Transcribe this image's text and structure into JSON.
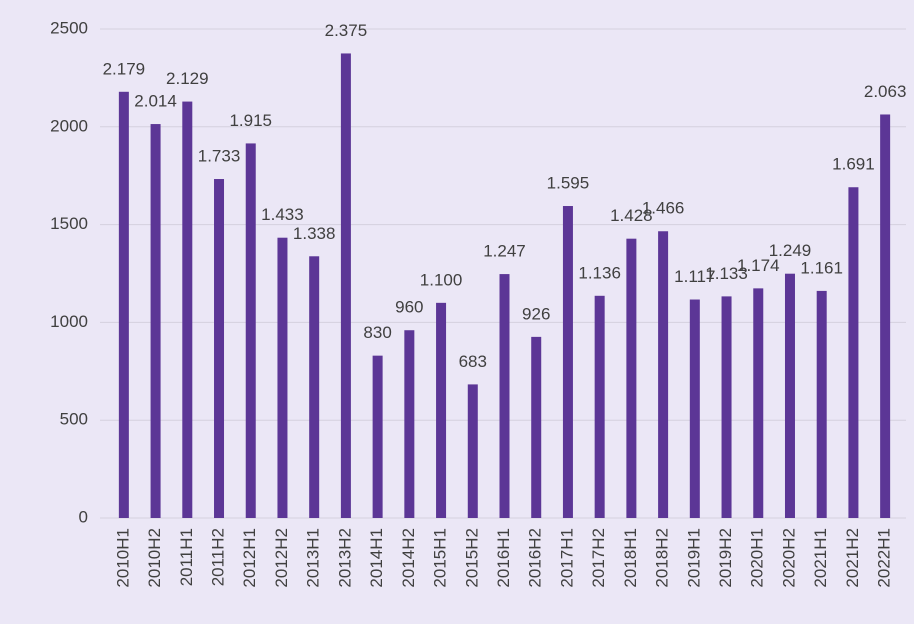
{
  "chart_data": {
    "type": "bar",
    "categories": [
      "2010H1",
      "2010H2",
      "2011H1",
      "2011H2",
      "2012H1",
      "2012H2",
      "2013H1",
      "2013H2",
      "2014H1",
      "2014H2",
      "2015H1",
      "2015H2",
      "2016H1",
      "2016H2",
      "2017H1",
      "2017H2",
      "2018H1",
      "2018H2",
      "2019H1",
      "2019H2",
      "2020H1",
      "2020H2",
      "2021H1",
      "2021H2",
      "2022H1"
    ],
    "values": [
      2179,
      2014,
      2129,
      1733,
      1915,
      1433,
      1338,
      2375,
      830,
      960,
      1100,
      683,
      1247,
      926,
      1595,
      1136,
      1428,
      1466,
      1117,
      1133,
      1174,
      1249,
      1161,
      1691,
      2063
    ],
    "value_labels": [
      "2.179",
      "2.014",
      "2.129",
      "1.733",
      "1.915",
      "1.433",
      "1.338",
      "2.375",
      "830",
      "960",
      "1.100",
      "683",
      "1.247",
      "926",
      "1.595",
      "1.136",
      "1.428",
      "1.466",
      "1.117",
      "1.133",
      "1.174",
      "1.249",
      "1.161",
      "1.691",
      "2.063"
    ],
    "color": "#5c3696",
    "ylim": [
      0,
      2500
    ],
    "yticks": [
      0,
      500,
      1000,
      1500,
      2000,
      2500
    ],
    "grid": true
  }
}
